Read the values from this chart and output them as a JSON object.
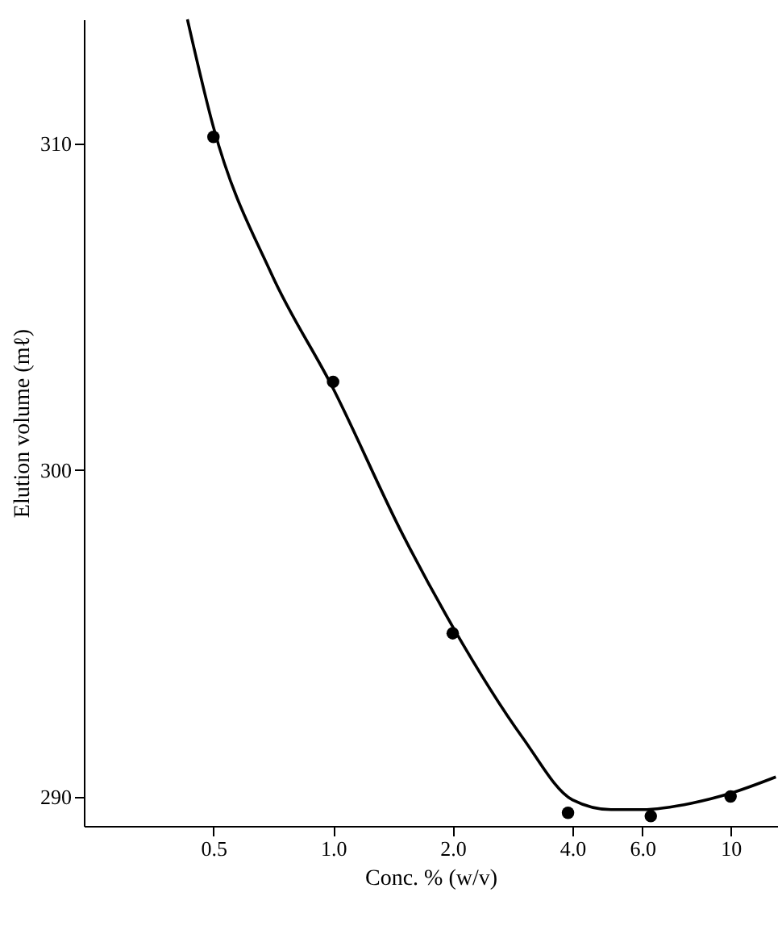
{
  "chart_data": {
    "type": "scatter",
    "xlabel": "Conc. % (w/v)",
    "ylabel": "Elution volume (mℓ)",
    "log": "x",
    "xlim": [
      0.236,
      13.1
    ],
    "ylim": [
      289.1,
      313.8
    ],
    "xticks": [
      {
        "value": 0.5,
        "label": "0.5"
      },
      {
        "value": 1,
        "label": "1.0"
      },
      {
        "value": 2,
        "label": "2.0"
      },
      {
        "value": 4,
        "label": "4.0"
      },
      {
        "value": 6,
        "label": "6.0"
      },
      10
    ],
    "yticks": [
      290,
      300,
      310
    ],
    "grid": false,
    "marker": "circle",
    "series": [
      {
        "color": "#000000",
        "x": [
          0.5,
          1,
          2,
          3.9,
          6.3,
          10
        ],
        "values": [
          310.2,
          302.7,
          295.0,
          289.5,
          289.4,
          290.0
        ]
      },
      {
        "type": "line",
        "color": "#000000",
        "line_style": "solid",
        "marker": "none",
        "x": [
          0.43,
          0.5,
          0.7,
          1.0,
          1.5,
          2.0,
          3,
          4,
          5,
          6,
          8,
          10,
          13
        ],
        "values": [
          313.8,
          310.5,
          306,
          302.5,
          298,
          295.2,
          291.8,
          289.9,
          289.6,
          289.6,
          289.8,
          290.1,
          290.6
        ]
      }
    ]
  }
}
